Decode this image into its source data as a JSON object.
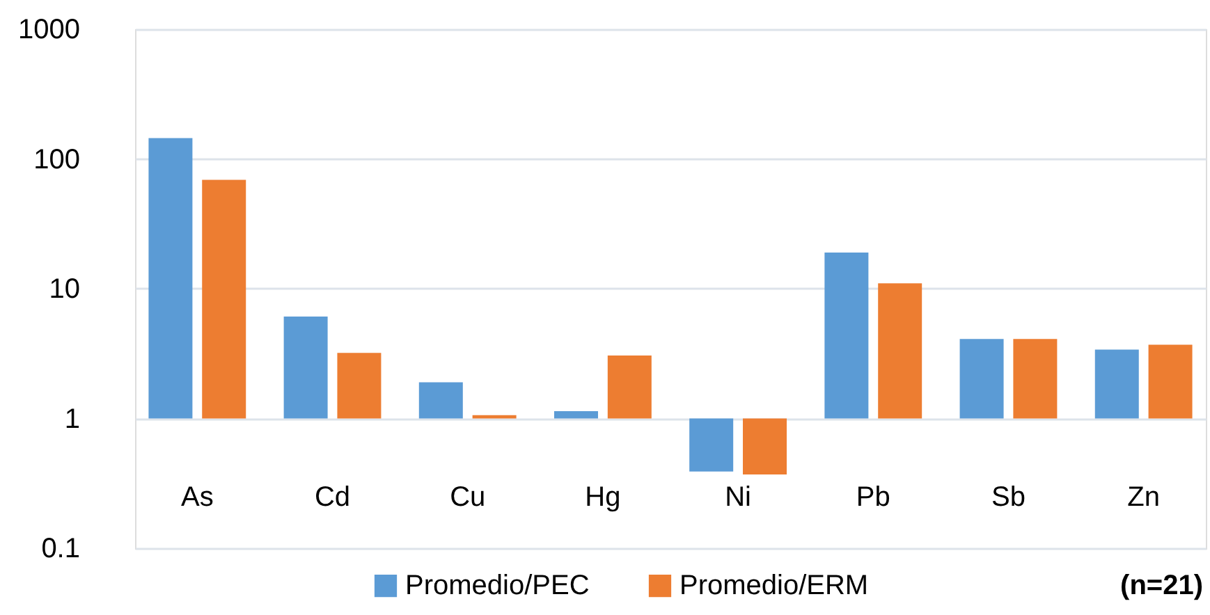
{
  "chart_data": {
    "type": "bar",
    "categories": [
      "As",
      "Cd",
      "Cu",
      "Hg",
      "Ni",
      "Pb",
      "Sb",
      "Zn"
    ],
    "series": [
      {
        "name": "Promedio/PEC",
        "color": "#5b9bd5",
        "values": [
          144,
          5.1,
          0.9,
          0.14,
          -0.61,
          18,
          3.1,
          2.4
        ],
        "base": [
          1,
          1,
          1,
          1,
          1,
          1,
          1,
          1
        ]
      },
      {
        "name": "Promedio/ERM",
        "color": "#ed7d31",
        "values": [
          68,
          2.2,
          0.06,
          2.06,
          -0.63,
          10,
          3.1,
          2.7
        ],
        "base": [
          1,
          1,
          1,
          1,
          1,
          1,
          1,
          1
        ]
      }
    ],
    "log": "y",
    "ylim": [
      0.1,
      1000
    ],
    "yticks": [
      0.1,
      1,
      10,
      100,
      1000
    ],
    "grid": "y",
    "legend": "bottom",
    "annotations": [
      "(n=21)"
    ]
  }
}
